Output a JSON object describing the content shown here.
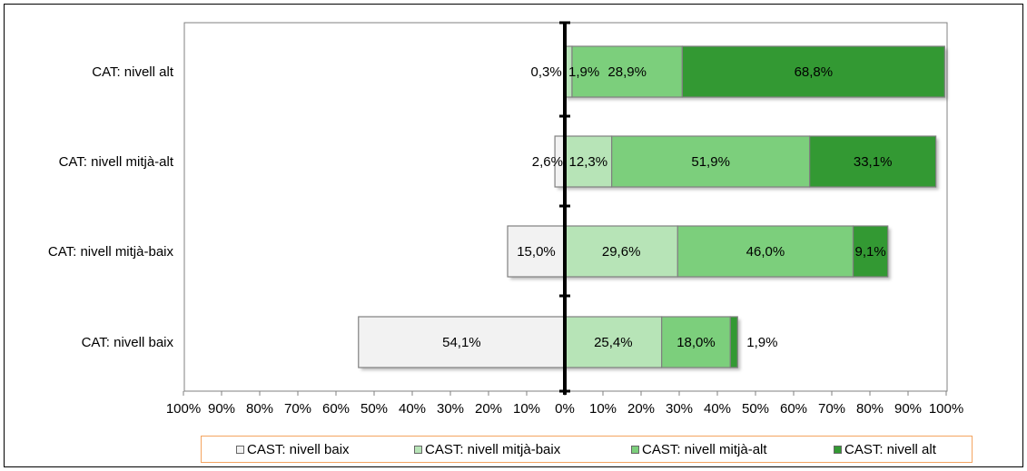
{
  "chart_data": {
    "type": "bar",
    "orientation": "horizontal",
    "stacked": true,
    "diverging": true,
    "categories": [
      "CAT: nivell alt",
      "CAT: nivell mitjà-alt",
      "CAT: nivell mitjà-baix",
      "CAT: nivell baix"
    ],
    "series": [
      {
        "name": "CAST: nivell baix",
        "color": "#f2f2f2",
        "values": [
          0.3,
          2.6,
          15.0,
          54.1
        ],
        "labels": [
          "0,3%",
          "2,6%",
          "15,0%",
          "54,1%"
        ]
      },
      {
        "name": "CAST: nivell mitjà-baix",
        "color": "#b7e4b7",
        "values": [
          1.9,
          12.3,
          29.6,
          25.4
        ],
        "labels": [
          "1,9%",
          "12,3%",
          "29,6%",
          "25,4%"
        ]
      },
      {
        "name": "CAST: nivell mitjà-alt",
        "color": "#7ccf7c",
        "values": [
          28.9,
          51.9,
          46.0,
          18.0
        ],
        "labels": [
          "28,9%",
          "51,9%",
          "46,0%",
          "18,0%"
        ]
      },
      {
        "name": "CAST: nivell alt",
        "color": "#339933",
        "values": [
          68.8,
          33.1,
          9.1,
          1.9
        ],
        "labels": [
          "68,8%",
          "33,1%",
          "9,1%",
          "1,9%"
        ]
      }
    ],
    "xlim": [
      -100,
      100
    ],
    "xticks": [
      "100%",
      "90%",
      "80%",
      "70%",
      "60%",
      "50%",
      "40%",
      "30%",
      "20%",
      "10%",
      "0%",
      "10%",
      "20%",
      "30%",
      "40%",
      "50%",
      "60%",
      "70%",
      "80%",
      "90%",
      "100%"
    ],
    "legend_position": "bottom",
    "grid": false
  }
}
